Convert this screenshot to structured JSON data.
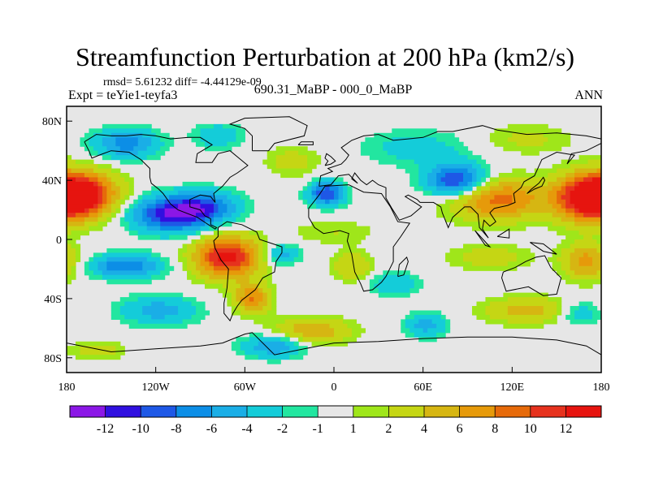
{
  "chart_data": {
    "type": "heatmap",
    "title": "Streamfunction Perturbation at 200 hPa (km2/s)",
    "subtitle_stats": "rmsd= 5.61232 diff= -4.44129e-09",
    "left_label": "Expt = teYie1-teyfa3",
    "center_label": "690.31_MaBP - 000_0_MaBP",
    "right_label": "ANN",
    "x_ticks": [
      {
        "value": -180,
        "label": "180"
      },
      {
        "value": -120,
        "label": "120W"
      },
      {
        "value": -60,
        "label": "60W"
      },
      {
        "value": 0,
        "label": "0"
      },
      {
        "value": 60,
        "label": "60E"
      },
      {
        "value": 120,
        "label": "120E"
      },
      {
        "value": 180,
        "label": "180"
      }
    ],
    "y_ticks": [
      {
        "value": 80,
        "label": "80N"
      },
      {
        "value": 40,
        "label": "40N"
      },
      {
        "value": 0,
        "label": "0"
      },
      {
        "value": -40,
        "label": "40S"
      },
      {
        "value": -80,
        "label": "80S"
      }
    ],
    "xlim": [
      -180,
      180
    ],
    "ylim": [
      -90,
      90
    ],
    "colorbar": {
      "colors": [
        "#8b17e6",
        "#3010e0",
        "#1e58e6",
        "#0c8ee6",
        "#1aaee6",
        "#14ccd9",
        "#22e6a0",
        "#e6e6e6",
        "#9fe61a",
        "#c5d614",
        "#d6b612",
        "#e69a0a",
        "#e66a0a",
        "#e6321e",
        "#e6140f"
      ],
      "labels": [
        "-12",
        "-10",
        "-8",
        "-6",
        "-4",
        "-2",
        "-1",
        "1",
        "2",
        "4",
        "6",
        "8",
        "10",
        "12"
      ]
    },
    "features": [
      {
        "lon": -170,
        "lat": 30,
        "amp": 14,
        "slon": 24,
        "slat": 15
      },
      {
        "lon": -108,
        "lat": 17,
        "amp": -12,
        "slon": 28,
        "slat": 12
      },
      {
        "lon": -85,
        "lat": 23,
        "amp": -6,
        "slon": 22,
        "slat": 10
      },
      {
        "lon": -5,
        "lat": 31,
        "amp": -10,
        "slon": 12,
        "slat": 8
      },
      {
        "lon": 82,
        "lat": 40,
        "amp": -11,
        "slon": 20,
        "slat": 11
      },
      {
        "lon": 110,
        "lat": 27,
        "amp": 9,
        "slon": 32,
        "slat": 14
      },
      {
        "lon": 170,
        "lat": 28,
        "amp": 12,
        "slon": 22,
        "slat": 16
      },
      {
        "lon": -72,
        "lat": -12,
        "amp": 13,
        "slon": 22,
        "slat": 14
      },
      {
        "lon": -55,
        "lat": -40,
        "amp": 8,
        "slon": 12,
        "slat": 10
      },
      {
        "lon": -140,
        "lat": -18,
        "amp": -8,
        "slon": 24,
        "slat": 8
      },
      {
        "lon": -118,
        "lat": -48,
        "amp": -5,
        "slon": 26,
        "slat": 10
      },
      {
        "lon": -140,
        "lat": 65,
        "amp": -7,
        "slon": 22,
        "slat": 10
      },
      {
        "lon": -78,
        "lat": 70,
        "amp": -4,
        "slon": 16,
        "slat": 8
      },
      {
        "lon": -28,
        "lat": 53,
        "amp": 3,
        "slon": 18,
        "slat": 10
      },
      {
        "lon": 55,
        "lat": 62,
        "amp": -3,
        "slon": 36,
        "slat": 12
      },
      {
        "lon": 130,
        "lat": 68,
        "amp": 2.5,
        "slon": 30,
        "slat": 10
      },
      {
        "lon": -35,
        "lat": -10,
        "amp": -5,
        "slon": 12,
        "slat": 7
      },
      {
        "lon": 12,
        "lat": -18,
        "amp": 4,
        "slon": 14,
        "slat": 10
      },
      {
        "lon": 40,
        "lat": -30,
        "amp": -4,
        "slon": 16,
        "slat": 8
      },
      {
        "lon": 62,
        "lat": -58,
        "amp": -5,
        "slon": 14,
        "slat": 8
      },
      {
        "lon": 105,
        "lat": -12,
        "amp": 3,
        "slon": 28,
        "slat": 9
      },
      {
        "lon": 130,
        "lat": -48,
        "amp": 5,
        "slon": 30,
        "slat": 9
      },
      {
        "lon": 170,
        "lat": -15,
        "amp": 7,
        "slon": 16,
        "slat": 12
      },
      {
        "lon": -15,
        "lat": -62,
        "amp": 6,
        "slon": 26,
        "slat": 9
      },
      {
        "lon": -40,
        "lat": -72,
        "amp": -6,
        "slon": 22,
        "slat": 8
      },
      {
        "lon": 0,
        "lat": 5,
        "amp": 2,
        "slon": 30,
        "slat": 8
      },
      {
        "lon": 165,
        "lat": -50,
        "amp": -4,
        "slon": 14,
        "slat": 8
      },
      {
        "lon": -160,
        "lat": -75,
        "amp": 3,
        "slon": 20,
        "slat": 6
      }
    ],
    "coastlines": [
      [
        [
          -168,
          66
        ],
        [
          -160,
          71
        ],
        [
          -150,
          70
        ],
        [
          -140,
          70
        ],
        [
          -130,
          71
        ],
        [
          -120,
          70
        ],
        [
          -110,
          68
        ],
        [
          -98,
          69
        ],
        [
          -90,
          69
        ],
        [
          -82,
          64
        ],
        [
          -92,
          58
        ],
        [
          -93,
          52
        ],
        [
          -82,
          52
        ],
        [
          -78,
          58
        ],
        [
          -70,
          60
        ],
        [
          -64,
          55
        ],
        [
          -58,
          50
        ],
        [
          -65,
          45
        ],
        [
          -70,
          42
        ],
        [
          -75,
          36
        ],
        [
          -81,
          31
        ],
        [
          -80,
          25
        ],
        [
          -83,
          29
        ],
        [
          -90,
          30
        ],
        [
          -97,
          27
        ],
        [
          -97,
          22
        ],
        [
          -90,
          20
        ],
        [
          -87,
          16
        ],
        [
          -83,
          14
        ],
        [
          -83,
          10
        ],
        [
          -79,
          8
        ],
        [
          -80,
          7
        ],
        [
          -86,
          11
        ],
        [
          -92,
          15
        ],
        [
          -105,
          20
        ],
        [
          -110,
          24
        ],
        [
          -115,
          31
        ],
        [
          -118,
          34
        ],
        [
          -123,
          38
        ],
        [
          -124,
          42
        ],
        [
          -124,
          48
        ],
        [
          -130,
          54
        ],
        [
          -138,
          59
        ],
        [
          -150,
          60
        ],
        [
          -158,
          57
        ],
        [
          -163,
          55
        ],
        [
          -165,
          60
        ],
        [
          -168,
          66
        ]
      ],
      [
        [
          -78,
          8
        ],
        [
          -72,
          12
        ],
        [
          -62,
          10
        ],
        [
          -52,
          5
        ],
        [
          -50,
          0
        ],
        [
          -44,
          -2
        ],
        [
          -35,
          -5
        ],
        [
          -35,
          -9
        ],
        [
          -39,
          -15
        ],
        [
          -40,
          -22
        ],
        [
          -48,
          -26
        ],
        [
          -53,
          -34
        ],
        [
          -58,
          -38
        ],
        [
          -62,
          -41
        ],
        [
          -65,
          -45
        ],
        [
          -68,
          -50
        ],
        [
          -70,
          -55
        ],
        [
          -74,
          -50
        ],
        [
          -74,
          -43
        ],
        [
          -72,
          -33
        ],
        [
          -71,
          -20
        ],
        [
          -76,
          -14
        ],
        [
          -80,
          -6
        ],
        [
          -81,
          -1
        ],
        [
          -78,
          2
        ],
        [
          -78,
          8
        ]
      ],
      [
        [
          -55,
          60
        ],
        [
          -44,
          60
        ],
        [
          -40,
          65
        ],
        [
          -20,
          70
        ],
        [
          -18,
          77
        ],
        [
          -30,
          83
        ],
        [
          -60,
          82
        ],
        [
          -70,
          78
        ],
        [
          -60,
          75
        ],
        [
          -55,
          70
        ],
        [
          -55,
          60
        ]
      ],
      [
        [
          -17,
          15
        ],
        [
          -17,
          21
        ],
        [
          -10,
          30
        ],
        [
          -6,
          36
        ],
        [
          10,
          37
        ],
        [
          20,
          32
        ],
        [
          32,
          31
        ],
        [
          34,
          28
        ],
        [
          38,
          22
        ],
        [
          43,
          12
        ],
        [
          51,
          11
        ],
        [
          45,
          2
        ],
        [
          40,
          -5
        ],
        [
          40,
          -15
        ],
        [
          35,
          -25
        ],
        [
          32,
          -29
        ],
        [
          26,
          -34
        ],
        [
          20,
          -35
        ],
        [
          18,
          -30
        ],
        [
          14,
          -22
        ],
        [
          12,
          -10
        ],
        [
          9,
          -1
        ],
        [
          10,
          4
        ],
        [
          4,
          6
        ],
        [
          -7,
          4
        ],
        [
          -13,
          8
        ],
        [
          -17,
          15
        ]
      ],
      [
        [
          -10,
          36
        ],
        [
          -9,
          43
        ],
        [
          -1,
          46
        ],
        [
          -4,
          48
        ],
        [
          5,
          51
        ],
        [
          8,
          54
        ],
        [
          10,
          57
        ],
        [
          5,
          62
        ],
        [
          12,
          67
        ],
        [
          20,
          70
        ],
        [
          30,
          71
        ],
        [
          40,
          67
        ],
        [
          60,
          69
        ],
        [
          70,
          73
        ],
        [
          80,
          73
        ],
        [
          100,
          77
        ],
        [
          110,
          74
        ],
        [
          130,
          71
        ],
        [
          150,
          72
        ],
        [
          170,
          70
        ],
        [
          180,
          68
        ],
        [
          180,
          65
        ],
        [
          170,
          60
        ],
        [
          160,
          58
        ],
        [
          157,
          51
        ],
        [
          162,
          57
        ],
        [
          150,
          59
        ],
        [
          140,
          54
        ],
        [
          135,
          43
        ],
        [
          128,
          39
        ],
        [
          126,
          35
        ],
        [
          121,
          31
        ],
        [
          122,
          25
        ],
        [
          117,
          23
        ],
        [
          108,
          21
        ],
        [
          105,
          18
        ],
        [
          109,
          12
        ],
        [
          105,
          9
        ],
        [
          101,
          13
        ],
        [
          100,
          7
        ],
        [
          104,
          1
        ],
        [
          98,
          8
        ],
        [
          97,
          17
        ],
        [
          92,
          22
        ],
        [
          88,
          22
        ],
        [
          80,
          15
        ],
        [
          77,
          8
        ],
        [
          73,
          18
        ],
        [
          72,
          22
        ],
        [
          67,
          25
        ],
        [
          58,
          25
        ],
        [
          56,
          27
        ],
        [
          50,
          30
        ],
        [
          48,
          29
        ],
        [
          56,
          24
        ],
        [
          59,
          22
        ],
        [
          52,
          16
        ],
        [
          44,
          13
        ],
        [
          39,
          21
        ],
        [
          35,
          28
        ],
        [
          35,
          35
        ],
        [
          30,
          37
        ],
        [
          26,
          40
        ],
        [
          22,
          37
        ],
        [
          18,
          40
        ],
        [
          14,
          45
        ],
        [
          12,
          41
        ],
        [
          16,
          38
        ],
        [
          10,
          44
        ],
        [
          3,
          43
        ],
        [
          -2,
          37
        ],
        [
          -10,
          36
        ]
      ],
      [
        [
          114,
          -22
        ],
        [
          122,
          -19
        ],
        [
          129,
          -15
        ],
        [
          136,
          -12
        ],
        [
          142,
          -11
        ],
        [
          146,
          -19
        ],
        [
          153,
          -26
        ],
        [
          150,
          -37
        ],
        [
          141,
          -38
        ],
        [
          131,
          -32
        ],
        [
          116,
          -35
        ],
        [
          113,
          -26
        ],
        [
          114,
          -22
        ]
      ],
      [
        [
          -180,
          -70
        ],
        [
          -150,
          -76
        ],
        [
          -120,
          -74
        ],
        [
          -90,
          -72
        ],
        [
          -75,
          -70
        ],
        [
          -60,
          -64
        ],
        [
          -55,
          -63
        ],
        [
          -40,
          -78
        ],
        [
          -20,
          -74
        ],
        [
          0,
          -70
        ],
        [
          30,
          -69
        ],
        [
          60,
          -67
        ],
        [
          90,
          -66
        ],
        [
          120,
          -66
        ],
        [
          150,
          -68
        ],
        [
          170,
          -72
        ],
        [
          180,
          -78
        ]
      ],
      [
        [
          -6,
          50
        ],
        [
          -2,
          51
        ],
        [
          1,
          53
        ],
        [
          -2,
          56
        ],
        [
          -5,
          58
        ],
        [
          -6,
          55
        ],
        [
          -4,
          53
        ],
        [
          -6,
          50
        ]
      ],
      [
        [
          130,
          31
        ],
        [
          135,
          34
        ],
        [
          140,
          36
        ],
        [
          142,
          40
        ],
        [
          141,
          42
        ],
        [
          138,
          38
        ],
        [
          133,
          34
        ],
        [
          130,
          31
        ]
      ],
      [
        [
          43,
          -25
        ],
        [
          47,
          -24
        ],
        [
          50,
          -15
        ],
        [
          49,
          -12
        ],
        [
          44,
          -17
        ],
        [
          43,
          -25
        ]
      ],
      [
        [
          95,
          6
        ],
        [
          105,
          -5
        ],
        [
          102,
          -4
        ],
        [
          95,
          6
        ]
      ],
      [
        [
          132,
          -2
        ],
        [
          141,
          -3
        ],
        [
          150,
          -10
        ],
        [
          141,
          -8
        ],
        [
          132,
          -2
        ]
      ],
      [
        [
          110,
          2
        ],
        [
          118,
          7
        ],
        [
          118,
          1
        ],
        [
          110,
          2
        ]
      ],
      [
        [
          -24,
          64
        ],
        [
          -14,
          64
        ],
        [
          -14,
          66
        ],
        [
          -22,
          66
        ],
        [
          -24,
          64
        ]
      ]
    ]
  }
}
